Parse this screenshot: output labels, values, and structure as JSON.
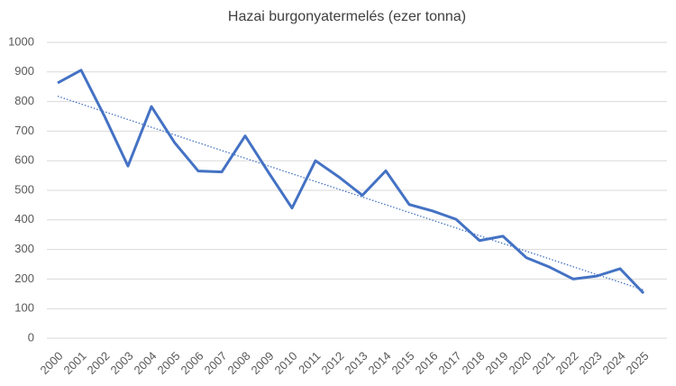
{
  "chart_data": {
    "type": "line",
    "title": "Hazai burgonyatermelés (ezer tonna)",
    "categories": [
      "2000",
      "2001",
      "2002",
      "2003",
      "2004",
      "2005",
      "2006",
      "2007",
      "2008",
      "2009",
      "2010",
      "2011",
      "2012",
      "2013",
      "2014",
      "2015",
      "2016",
      "2017",
      "2018",
      "2019",
      "2020",
      "2021",
      "2022",
      "2023",
      "2024",
      "2025"
    ],
    "series": [
      {
        "color": "#4472c4",
        "values": [
          863,
          906,
          750,
          582,
          783,
          660,
          565,
          562,
          684,
          560,
          440,
          600,
          545,
          483,
          566,
          452,
          430,
          402,
          330,
          345,
          272,
          240,
          200,
          210,
          235,
          152
        ]
      }
    ],
    "trendline": {
      "color": "#4472c4",
      "start": 818,
      "end": 163
    },
    "ylim": [
      0,
      1000
    ],
    "yticks": [
      0,
      100,
      200,
      300,
      400,
      500,
      600,
      700,
      800,
      900,
      1000
    ],
    "grid": true
  }
}
